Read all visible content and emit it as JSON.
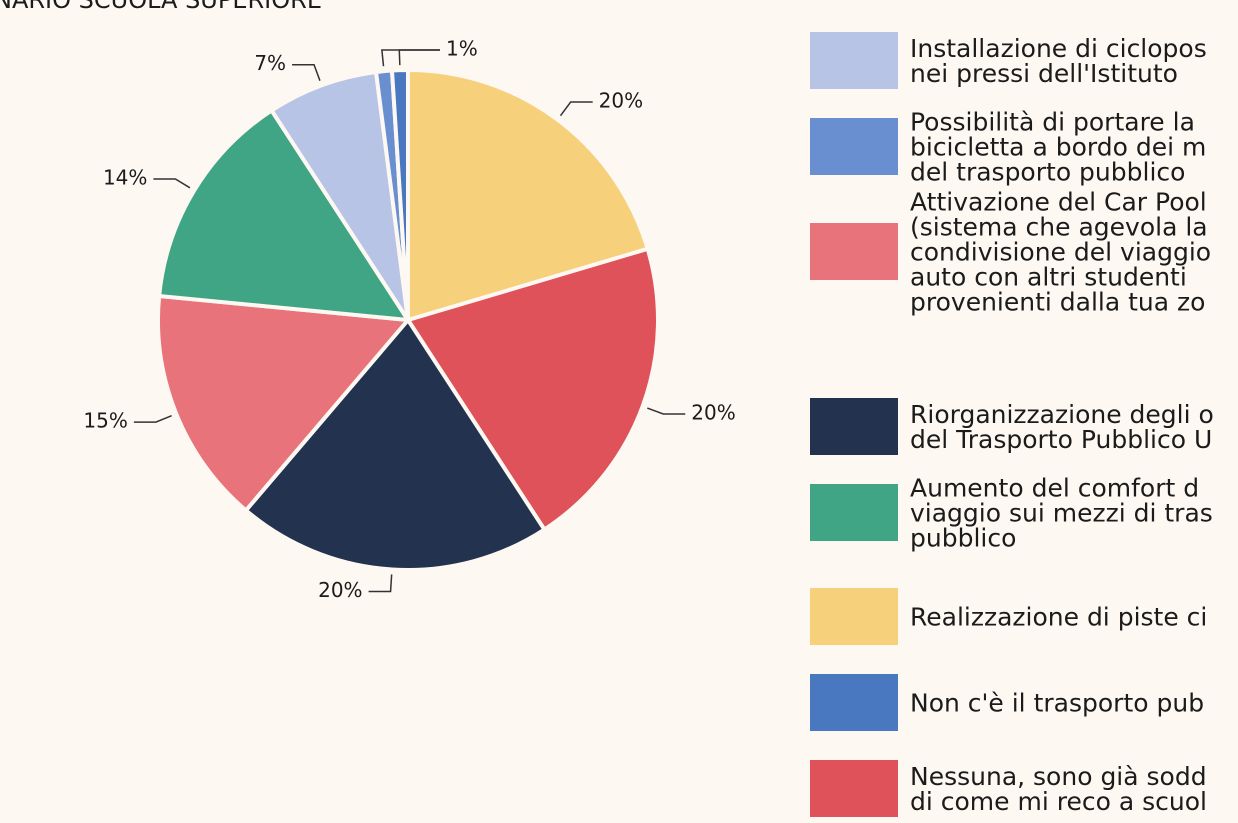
{
  "chart_data": {
    "type": "pie",
    "title": "NARIO SCUOLA SUPERIORE",
    "series": [
      {
        "name": [
          "Installazione di ciclopos",
          "nei pressi dell'Istituto"
        ],
        "color": "#b8c4e6",
        "values": [
          7
        ],
        "value_labels": [
          "7%"
        ]
      },
      {
        "name": [
          "Possibilità di portare la",
          "bicicletta a bordo dei m",
          "del trasporto pubblico"
        ],
        "color": "#6a8fd0",
        "values": [
          1
        ],
        "value_labels": [
          "1%"
        ]
      },
      {
        "name": [
          "Attivazione del Car Pool",
          "(sistema che agevola la",
          "condivisione del viaggio",
          "auto con altri studenti",
          "provenienti dalla tua zo"
        ],
        "color": "#e8737a",
        "values": [
          15
        ],
        "value_labels": [
          "15%"
        ]
      },
      {
        "name": [
          "Riorganizzazione degli o",
          "del Trasporto Pubblico U"
        ],
        "color": "#22324f",
        "values": [
          20
        ],
        "value_labels": [
          "20%"
        ]
      },
      {
        "name": [
          "Aumento del comfort d",
          "viaggio sui mezzi di tras",
          "pubblico"
        ],
        "color": "#3fa584",
        "values": [
          14
        ],
        "value_labels": [
          "14%"
        ]
      },
      {
        "name": [
          "Realizzazione di piste ci"
        ],
        "color": "#f6d07a",
        "values": [
          20
        ],
        "value_labels": [
          "20%"
        ]
      },
      {
        "name": [
          "Non c'è il trasporto pub"
        ],
        "color": "#4a78c0",
        "values": [
          1
        ],
        "value_labels": [
          "1%"
        ]
      },
      {
        "name": [
          "Nessuna, sono già sodd",
          "di come mi reco a scuol"
        ],
        "color": "#df525a",
        "values": [
          20
        ],
        "value_labels": [
          "20%"
        ]
      }
    ]
  }
}
